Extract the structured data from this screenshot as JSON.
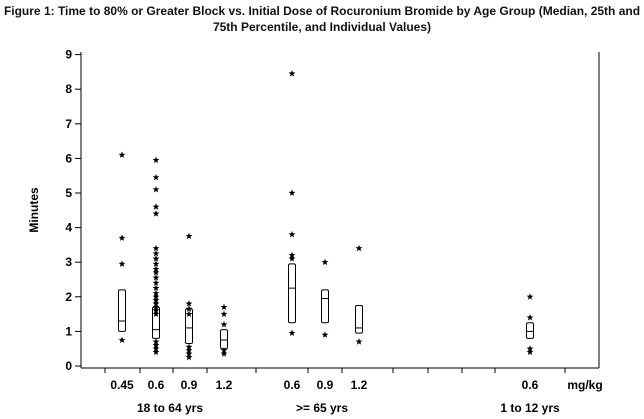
{
  "chart_data": {
    "type": "box",
    "title_line1": "Figure 1: Time to 80% or Greater Block vs. Initial Dose of Rocuronium Bromide by Age Group (Median, 25th and",
    "title_line2": "75th Percentile, and Individual Values)",
    "ylabel": "Minutes",
    "ylim": [
      0,
      9
    ],
    "yticks": [
      "0",
      "1",
      "2",
      "3",
      "4",
      "5",
      "6",
      "7",
      "8",
      "9"
    ],
    "x_unit_label": "mg/kg",
    "groups": [
      {
        "label": "18 to 64 yrs",
        "doses": [
          "0.45",
          "0.6",
          "0.9",
          "1.2"
        ]
      },
      {
        "label": ">= 65 yrs",
        "doses": [
          "0.6",
          "0.9",
          "1.2"
        ]
      },
      {
        "label": "1 to 12 yrs",
        "doses": [
          "0.6"
        ]
      }
    ],
    "series": [
      {
        "group": "18 to 64 yrs",
        "dose": "0.45",
        "q1": 1.0,
        "median": 1.3,
        "q3": 2.2,
        "points": [
          6.1,
          3.7,
          2.95,
          0.75
        ]
      },
      {
        "group": "18 to 64 yrs",
        "dose": "0.6",
        "q1": 0.8,
        "median": 1.05,
        "q3": 1.7,
        "points": [
          5.95,
          5.45,
          5.1,
          4.6,
          4.4,
          3.4,
          3.25,
          3.1,
          2.95,
          2.8,
          2.7,
          2.55,
          2.4,
          2.25,
          2.1,
          2.0,
          1.9,
          1.8,
          1.7,
          1.6,
          1.5,
          0.7,
          0.6,
          0.5,
          0.4
        ]
      },
      {
        "group": "18 to 64 yrs",
        "dose": "0.9",
        "q1": 0.65,
        "median": 1.1,
        "q3": 1.65,
        "points": [
          3.75,
          1.8,
          1.65,
          1.5,
          0.55,
          0.45,
          0.35,
          0.25
        ]
      },
      {
        "group": "18 to 64 yrs",
        "dose": "1.2",
        "q1": 0.5,
        "median": 0.75,
        "q3": 1.05,
        "points": [
          1.7,
          1.5,
          1.2,
          0.45,
          0.35
        ]
      },
      {
        "group": ">= 65 yrs",
        "dose": "0.6",
        "q1": 1.25,
        "median": 2.25,
        "q3": 2.95,
        "points": [
          8.45,
          5.0,
          3.8,
          3.2,
          3.1,
          0.95
        ]
      },
      {
        "group": ">= 65 yrs",
        "dose": "0.9",
        "q1": 1.25,
        "median": 1.95,
        "q3": 2.2,
        "points": [
          3.0,
          0.9
        ]
      },
      {
        "group": ">= 65 yrs",
        "dose": "1.2",
        "q1": 0.95,
        "median": 1.1,
        "q3": 1.75,
        "points": [
          3.4,
          0.7
        ]
      },
      {
        "group": "1 to 12 yrs",
        "dose": "0.6",
        "q1": 0.8,
        "median": 1.0,
        "q3": 1.25,
        "points": [
          2.0,
          1.4,
          0.5,
          0.4
        ]
      }
    ]
  }
}
